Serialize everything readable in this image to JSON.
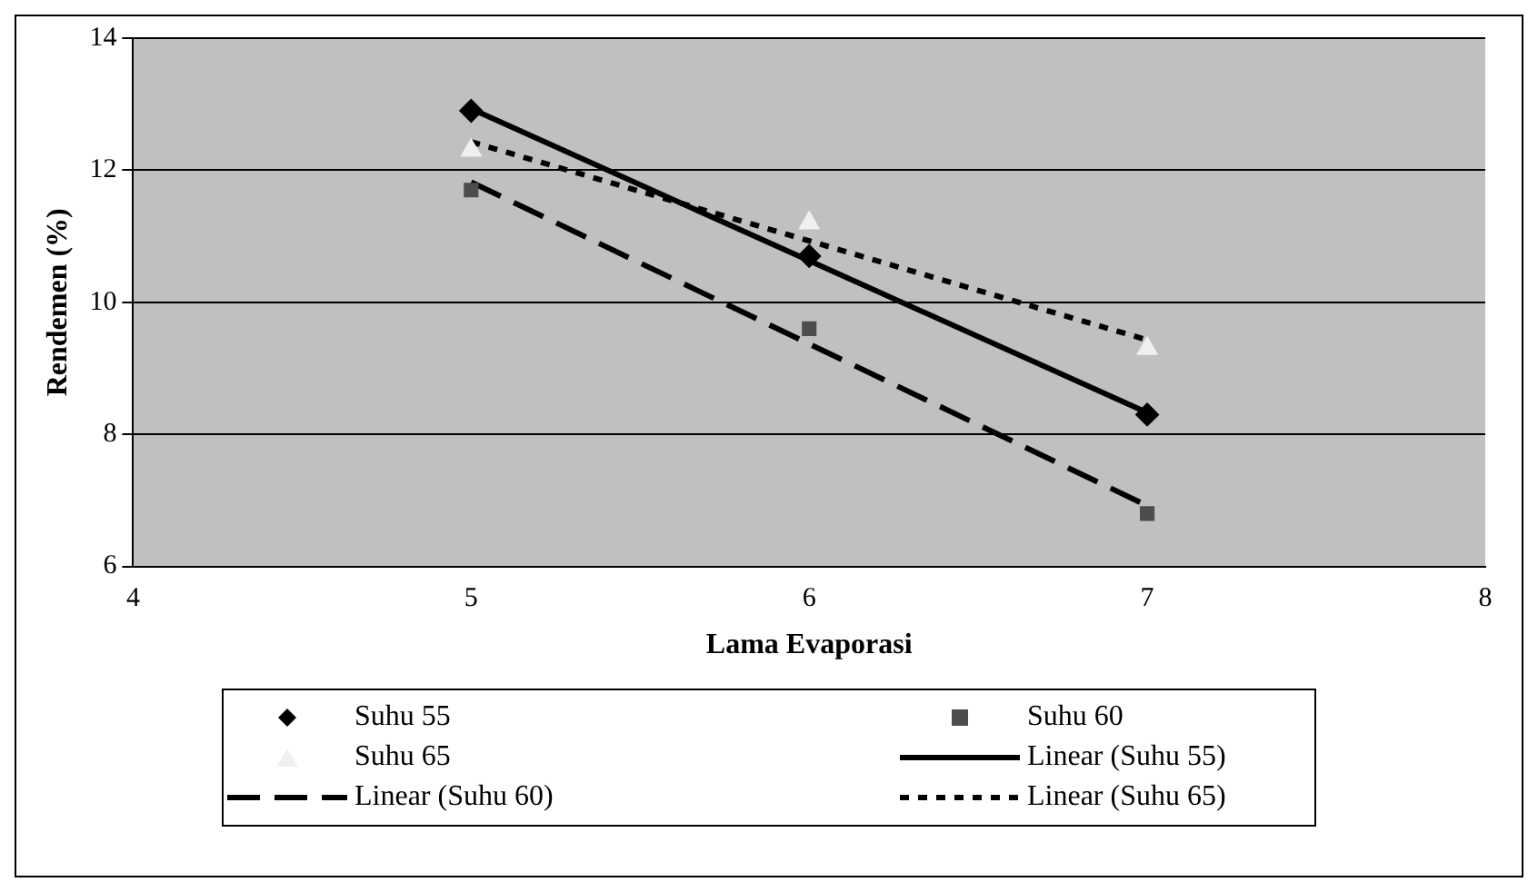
{
  "chart_data": {
    "type": "scatter",
    "xlabel": "Lama Evaporasi",
    "ylabel": "Rendemen (%)",
    "xlim": [
      4,
      8
    ],
    "xticks": [
      4,
      5,
      6,
      7,
      8
    ],
    "ylim": [
      6,
      14
    ],
    "yticks": [
      6,
      8,
      10,
      12,
      14
    ],
    "grid": "y",
    "legend": "bottom",
    "x": [
      5,
      6,
      7
    ],
    "series": [
      {
        "name": "Suhu 55",
        "type": "scatter",
        "marker": "diamond",
        "color": "#000000",
        "values": [
          12.9,
          10.7,
          8.3
        ]
      },
      {
        "name": "Suhu 60",
        "type": "scatter",
        "marker": "square",
        "color": "#4d4d4d",
        "values": [
          11.7,
          9.6,
          6.8
        ]
      },
      {
        "name": "Suhu 65",
        "type": "scatter",
        "marker": "triangle",
        "color": "#f0f0f0",
        "values": [
          12.3,
          11.2,
          9.3
        ]
      },
      {
        "name": "Linear (Suhu 55)",
        "type": "line",
        "marker": "none",
        "line_style": "solid",
        "color": "#000000",
        "values": [
          12.93,
          10.63,
          8.33
        ]
      },
      {
        "name": "Linear (Suhu 60)",
        "type": "line",
        "marker": "none",
        "line_style": "dashed",
        "color": "#000000",
        "values": [
          11.82,
          9.37,
          6.92
        ]
      },
      {
        "name": "Linear (Suhu 65)",
        "type": "line",
        "marker": "none",
        "line_style": "dotted",
        "color": "#000000",
        "values": [
          12.43,
          10.93,
          9.43
        ]
      }
    ]
  }
}
